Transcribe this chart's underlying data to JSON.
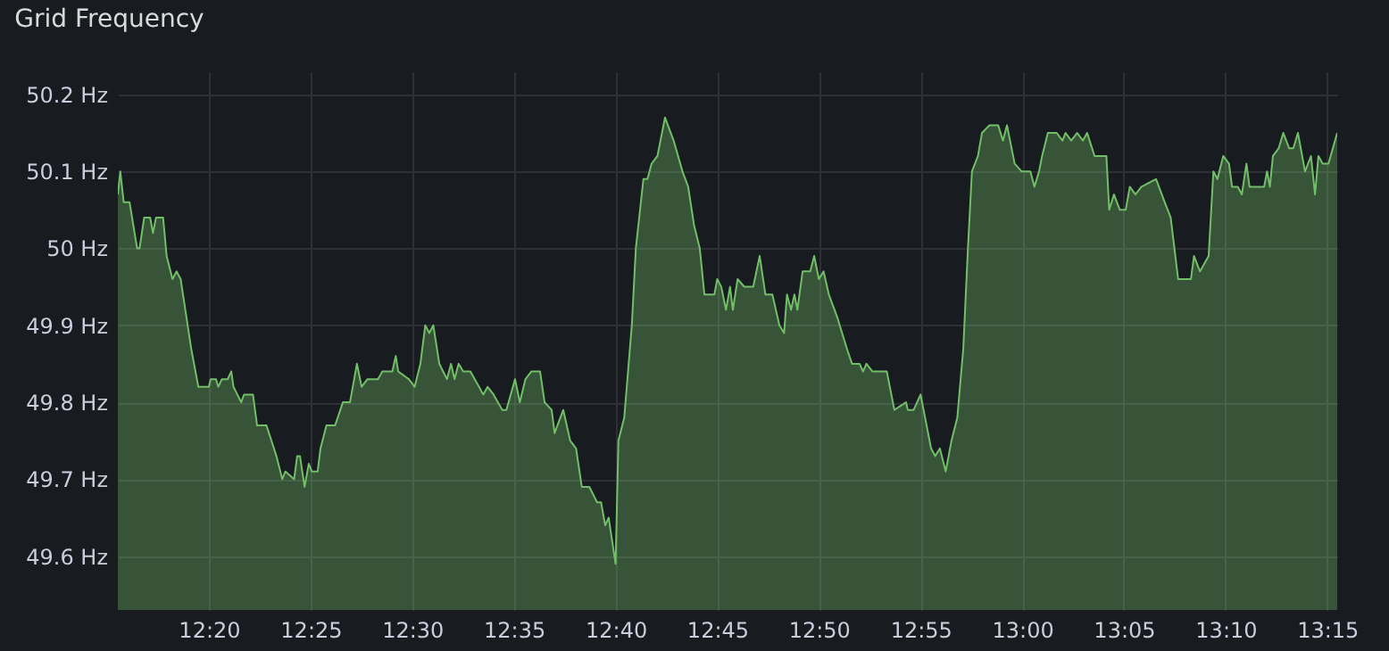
{
  "chart_data": {
    "type": "area",
    "title": "Grid Frequency",
    "xlim": [
      12.2587,
      13.2582
    ],
    "ylim": [
      49.53,
      50.23
    ],
    "xticks": [
      {
        "value": 12.3333,
        "label": "12:20"
      },
      {
        "value": 12.4167,
        "label": "12:25"
      },
      {
        "value": 12.5,
        "label": "12:30"
      },
      {
        "value": 12.5833,
        "label": "12:35"
      },
      {
        "value": 12.6667,
        "label": "12:40"
      },
      {
        "value": 12.75,
        "label": "12:45"
      },
      {
        "value": 12.8333,
        "label": "12:50"
      },
      {
        "value": 12.9167,
        "label": "12:55"
      },
      {
        "value": 13.0,
        "label": "13:00"
      },
      {
        "value": 13.0833,
        "label": "13:05"
      },
      {
        "value": 13.1667,
        "label": "13:10"
      },
      {
        "value": 13.25,
        "label": "13:15"
      }
    ],
    "yticks": [
      {
        "value": 49.6,
        "label": "49.6 Hz"
      },
      {
        "value": 49.7,
        "label": "49.7 Hz"
      },
      {
        "value": 49.8,
        "label": "49.8 Hz"
      },
      {
        "value": 49.9,
        "label": "49.9 Hz"
      },
      {
        "value": 50.0,
        "label": "50 Hz"
      },
      {
        "value": 50.1,
        "label": "50.1 Hz"
      },
      {
        "value": 50.2,
        "label": "50.2 Hz"
      }
    ],
    "grid": true,
    "marker": "none",
    "line_style": "solid",
    "series": [
      {
        "color": "#73bf69",
        "x": [
          12.2587,
          12.2607,
          12.2635,
          12.2683,
          12.2745,
          12.2765,
          12.2803,
          12.2852,
          12.2875,
          12.29,
          12.2958,
          12.2987,
          12.3035,
          12.3068,
          12.3102,
          12.3188,
          12.3247,
          12.3333,
          12.3348,
          12.3392,
          12.341,
          12.344,
          12.3487,
          12.3517,
          12.3535,
          12.3598,
          12.3622,
          12.3695,
          12.3728,
          12.3805,
          12.3887,
          12.3935,
          12.396,
          12.4032,
          12.4057,
          12.408,
          12.4118,
          12.4152,
          12.4177,
          12.4225,
          12.4248,
          12.4297,
          12.4368,
          12.4432,
          12.449,
          12.4547,
          12.4585,
          12.4633,
          12.472,
          12.4755,
          12.4837,
          12.4865,
          12.4885,
          12.4972,
          12.502,
          12.5067,
          12.5107,
          12.514,
          12.5173,
          12.5222,
          12.5285,
          12.5318,
          12.5347,
          12.538,
          12.5418,
          12.5477,
          12.5548,
          12.5582,
          12.5618,
          12.5667,
          12.5738,
          12.5772,
          12.5843,
          12.5882,
          12.5928,
          12.5977,
          12.6048,
          12.6085,
          12.6143,
          12.6167,
          12.6238,
          12.6295,
          12.6343,
          12.639,
          12.6452,
          12.6515,
          12.6548,
          12.6582,
          12.661,
          12.6667,
          12.669,
          12.6738,
          12.68,
          12.6833,
          12.6895,
          12.6928,
          12.6962,
          12.701,
          12.7072,
          12.7143,
          12.7215,
          12.7262,
          12.731,
          12.7357,
          12.7395,
          12.7477,
          12.75,
          12.7533,
          12.7572,
          12.7605,
          12.7628,
          12.7667,
          12.7723,
          12.7795,
          12.7848,
          12.7895,
          12.7952,
          12.801,
          12.8048,
          12.8072,
          12.8105,
          12.8133,
          12.8157,
          12.82,
          12.8262,
          12.8295,
          12.8333,
          12.8372,
          12.8415,
          12.8485,
          12.8562,
          12.8605,
          12.8667,
          12.8695,
          12.8723,
          12.8772,
          12.889,
          12.8952,
          12.9048,
          12.9062,
          12.911,
          12.9167,
          12.9253,
          12.9287,
          12.9325,
          12.9373,
          12.942,
          12.9468,
          12.9517,
          12.9555,
          12.9588,
          12.9637,
          12.967,
          12.9732,
          12.9803,
          12.9842,
          12.9875,
          12.9938,
          12.9995,
          13.0067,
          13.01,
          13.0138,
          13.0163,
          13.021,
          13.0283,
          13.033,
          13.0355,
          13.0402,
          13.045,
          13.0498,
          13.0532,
          13.0593,
          13.069,
          13.0713,
          13.0752,
          13.08,
          13.0848,
          13.0882,
          13.0928,
          13.0977,
          13.1097,
          13.1168,
          13.1217,
          13.1278,
          13.1383,
          13.1408,
          13.1457,
          13.1528,
          13.1567,
          13.16,
          13.1648,
          13.1695,
          13.172,
          13.1767,
          13.18,
          13.1838,
          13.1863,
          13.1983,
          13.2007,
          13.203,
          13.2055,
          13.2102,
          13.214,
          13.2188,
          13.2222,
          13.226,
          13.2318,
          13.2367,
          13.24,
          13.2428,
          13.2462,
          13.251,
          13.2582
        ],
        "values": [
          50.07,
          50.1,
          50.06,
          50.06,
          50.0,
          50.0,
          50.04,
          50.04,
          50.02,
          50.04,
          50.04,
          49.99,
          49.96,
          49.97,
          49.96,
          49.87,
          49.82,
          49.82,
          49.83,
          49.83,
          49.82,
          49.83,
          49.83,
          49.84,
          49.82,
          49.8,
          49.81,
          49.81,
          49.77,
          49.77,
          49.73,
          49.7,
          49.71,
          49.7,
          49.73,
          49.73,
          49.69,
          49.72,
          49.71,
          49.71,
          49.74,
          49.77,
          49.77,
          49.8,
          49.8,
          49.85,
          49.82,
          49.83,
          49.83,
          49.84,
          49.84,
          49.86,
          49.84,
          49.83,
          49.82,
          49.85,
          49.9,
          49.89,
          49.9,
          49.85,
          49.83,
          49.85,
          49.83,
          49.85,
          49.84,
          49.84,
          49.82,
          49.81,
          49.82,
          49.81,
          49.79,
          49.79,
          49.83,
          49.8,
          49.83,
          49.84,
          49.84,
          49.8,
          49.79,
          49.76,
          49.79,
          49.75,
          49.74,
          49.69,
          49.69,
          49.67,
          49.67,
          49.64,
          49.65,
          49.59,
          49.75,
          49.78,
          49.9,
          50.0,
          50.09,
          50.09,
          50.11,
          50.12,
          50.17,
          50.14,
          50.1,
          50.08,
          50.03,
          50.0,
          49.94,
          49.94,
          49.96,
          49.95,
          49.92,
          49.95,
          49.92,
          49.96,
          49.95,
          49.95,
          49.99,
          49.94,
          49.94,
          49.9,
          49.89,
          49.94,
          49.92,
          49.94,
          49.92,
          49.97,
          49.97,
          49.99,
          49.96,
          49.97,
          49.94,
          49.91,
          49.87,
          49.85,
          49.85,
          49.84,
          49.85,
          49.84,
          49.84,
          49.79,
          49.8,
          49.79,
          49.79,
          49.81,
          49.74,
          49.73,
          49.74,
          49.71,
          49.75,
          49.78,
          49.87,
          50.0,
          50.1,
          50.12,
          50.15,
          50.16,
          50.16,
          50.14,
          50.16,
          50.11,
          50.1,
          50.1,
          50.08,
          50.1,
          50.12,
          50.15,
          50.15,
          50.14,
          50.15,
          50.14,
          50.15,
          50.14,
          50.15,
          50.12,
          50.12,
          50.05,
          50.07,
          50.05,
          50.05,
          50.08,
          50.07,
          50.08,
          50.09,
          50.06,
          50.04,
          49.96,
          49.96,
          49.99,
          49.97,
          49.99,
          50.1,
          50.09,
          50.12,
          50.11,
          50.08,
          50.08,
          50.07,
          50.11,
          50.08,
          50.08,
          50.1,
          50.08,
          50.12,
          50.13,
          50.15,
          50.13,
          50.13,
          50.15,
          50.1,
          50.12,
          50.07,
          50.12,
          50.11,
          50.11,
          50.15
        ]
      }
    ]
  }
}
